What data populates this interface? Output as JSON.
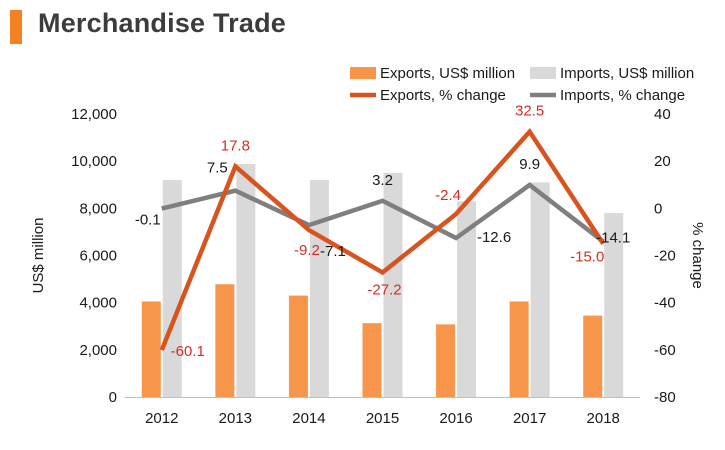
{
  "page": {
    "title": "Merchandise Trade",
    "accent_color": "#f58220"
  },
  "chart_data": {
    "type": "bar+line",
    "categories": [
      "2012",
      "2013",
      "2014",
      "2015",
      "2016",
      "2017",
      "2018"
    ],
    "bars": [
      {
        "name": "Exports, US$ million",
        "color": "#f7964a",
        "values": [
          4050,
          4780,
          4300,
          3130,
          3080,
          4050,
          3450
        ]
      },
      {
        "name": "Imports, US$ million",
        "color": "#d9d9d9",
        "values": [
          9200,
          9880,
          9200,
          9500,
          8300,
          9100,
          7800
        ]
      }
    ],
    "lines": [
      {
        "name": "Exports, % change",
        "color": "#d9531e",
        "label_color": "#d42e24",
        "values": [
          -60.1,
          17.8,
          -9.2,
          -27.2,
          -2.4,
          32.5,
          -15.0
        ],
        "labels": [
          "-60.1",
          "17.8",
          "-9.2",
          "-27.2",
          "-2.4",
          "32.5",
          "-15.0"
        ]
      },
      {
        "name": "Imports, % change",
        "color": "#7f7f7f",
        "label_color": "#1a1a1a",
        "values": [
          -0.1,
          7.5,
          -7.1,
          3.2,
          -12.6,
          9.9,
          -14.1
        ],
        "labels": [
          "-0.1",
          "7.5",
          "-7.1",
          "3.2",
          "-12.6",
          "9.9",
          "-14.1"
        ]
      }
    ],
    "y_left": {
      "label": "US$ million",
      "min": 0,
      "max": 12000,
      "step": 2000,
      "ticks": [
        "0",
        "2,000",
        "4,000",
        "6,000",
        "8,000",
        "10,000",
        "12,000"
      ]
    },
    "y_right": {
      "label": "% change",
      "min": -80,
      "max": 40,
      "step": 20,
      "ticks": [
        "-80",
        "-60",
        "-40",
        "-20",
        "0",
        "20",
        "40"
      ]
    },
    "legend_position": "top-right"
  }
}
